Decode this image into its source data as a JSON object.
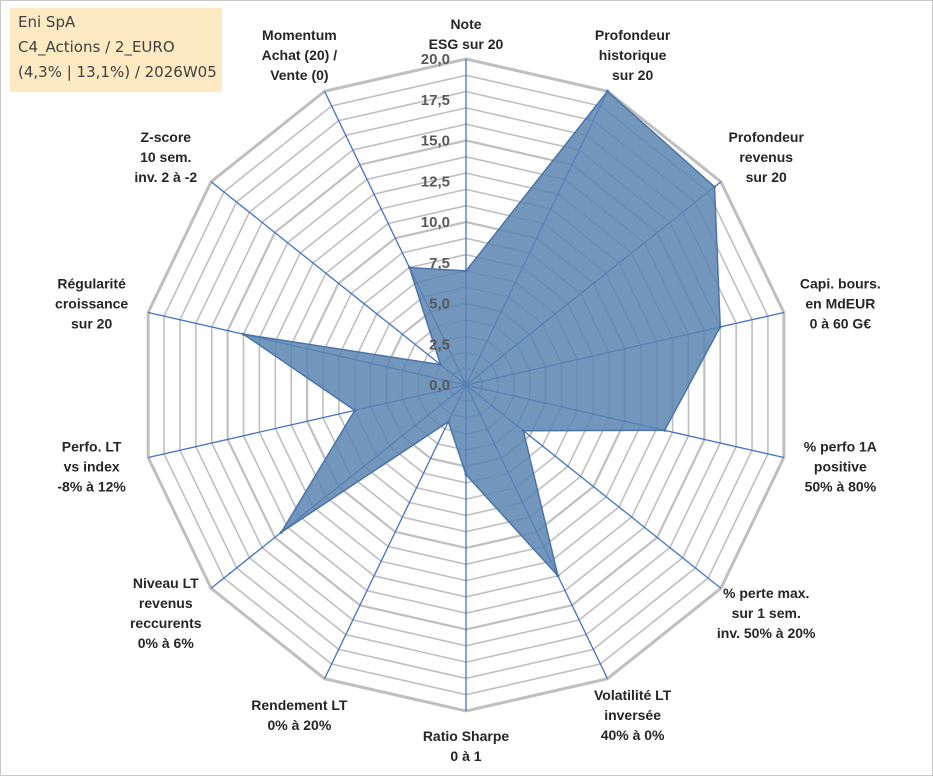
{
  "chart_data": {
    "type": "radar",
    "title": "Eni SpA",
    "subtitle_lines": [
      "C4_Actions / 2_EURO",
      "(4,3% | 13,1%) / 2026W05"
    ],
    "rlim": [
      0,
      20
    ],
    "ticks": [
      "0,0",
      "2,5",
      "5,0",
      "7,5",
      "10,0",
      "12,5",
      "15,0",
      "17,5",
      "20,0"
    ],
    "axes": [
      {
        "label": [
          "Note",
          "ESG sur 20"
        ],
        "value": 7.0
      },
      {
        "label": [
          "Profondeur",
          "historique",
          "sur 20"
        ],
        "value": 20.0
      },
      {
        "label": [
          "Profondeur",
          "revenus",
          "sur 20"
        ],
        "value": 19.5
      },
      {
        "label": [
          "Capi. bours.",
          "en MdEUR",
          "0 à 60 G€"
        ],
        "value": 16.0
      },
      {
        "label": [
          "% perfo 1A",
          "positive",
          "50% à 80%"
        ],
        "value": 12.5
      },
      {
        "label": [
          "% perte max.",
          "sur 1 sem.",
          "inv. 50% à 20%"
        ],
        "value": 4.5
      },
      {
        "label": [
          "Volatilité LT",
          "inversée",
          "40% à 0%"
        ],
        "value": 13.0
      },
      {
        "label": [
          "Ratio Sharpe",
          "0 à 1"
        ],
        "value": 5.5
      },
      {
        "label": [
          "Rendement LT",
          "0% à 20%"
        ],
        "value": 2.5
      },
      {
        "label": [
          "Niveau LT",
          "revenus",
          "reccurents",
          "0% à 6%"
        ],
        "value": 14.5
      },
      {
        "label": [
          "Perfo. LT",
          "vs index",
          "-8% à 12%"
        ],
        "value": 7.0
      },
      {
        "label": [
          "Régularité",
          "croissance",
          "sur 20"
        ],
        "value": 14.0
      },
      {
        "label": [
          "Z-score",
          "10 sem.",
          "inv. 2 à -2"
        ],
        "value": 2.0
      },
      {
        "label": [
          "Momentum",
          "Achat (20) /",
          "Vente (0)"
        ],
        "value": 8.0
      }
    ],
    "colors": {
      "fill": "#5b84b1",
      "stroke": "#4a74a8",
      "grid": "#bfbfbf",
      "spoke": "#4472c4"
    }
  }
}
